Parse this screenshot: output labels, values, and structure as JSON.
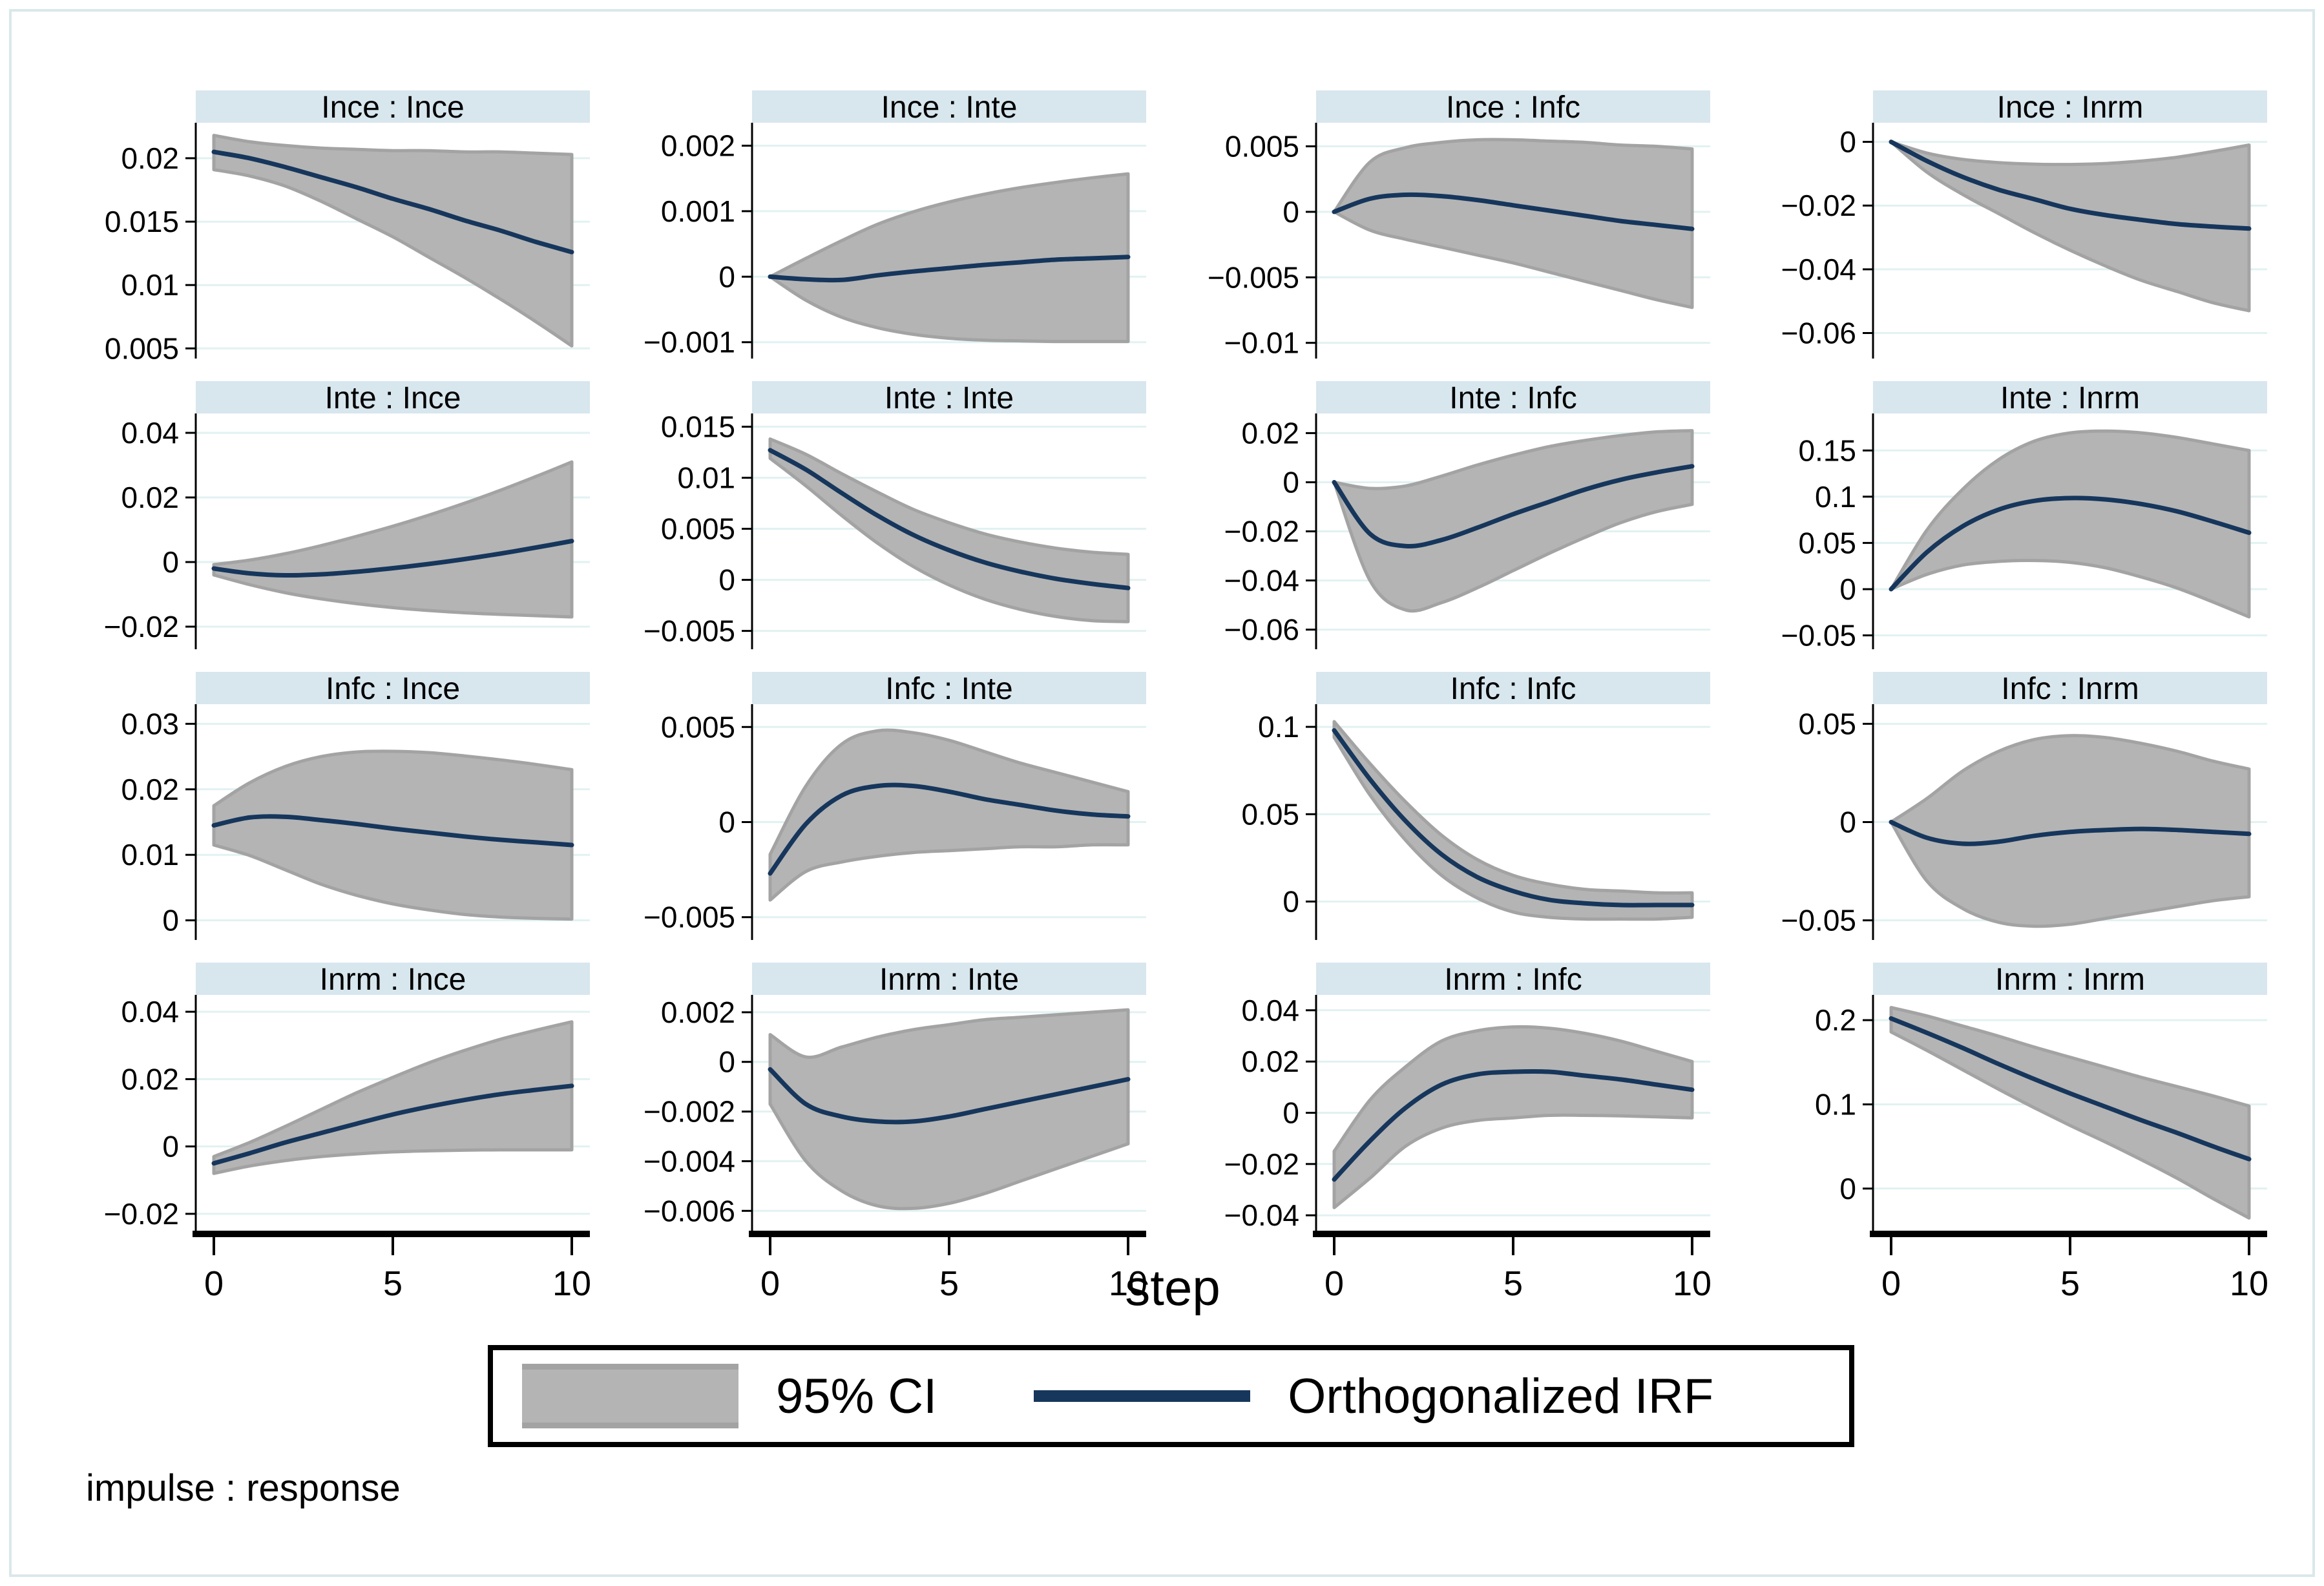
{
  "chart_data": {
    "type": "line",
    "x": [
      0,
      1,
      2,
      3,
      4,
      5,
      6,
      7,
      8,
      9,
      10
    ],
    "xticks": [
      {
        "v": 0,
        "label": "0"
      },
      {
        "v": 5,
        "label": "5"
      },
      {
        "v": 10,
        "label": "10"
      }
    ],
    "xlabel": "step",
    "footer": "impulse : response",
    "grid": true,
    "legend_position": "bottom-center",
    "legend": [
      {
        "swatch": "band",
        "label": "95% CI"
      },
      {
        "swatch": "line",
        "label": "Orthogonalized IRF"
      }
    ],
    "colors": {
      "band_fill": "#b4b4b4",
      "band_edge": "#a3a3a3",
      "irf_line": "#16365c",
      "title_bg": "#d8e6ee",
      "grid_line": "#e2f1f1",
      "frame": "#d9e8ea",
      "axis": "#000000"
    },
    "panels": [
      {
        "title": "Ince : Ince",
        "ylim": [
          0.0042,
          0.0228
        ],
        "yticks": [
          {
            "v": 0.005,
            "label": "0.005"
          },
          {
            "v": 0.01,
            "label": "0.01"
          },
          {
            "v": 0.015,
            "label": "0.015"
          },
          {
            "v": 0.02,
            "label": "0.02"
          }
        ],
        "irf": [
          0.0205,
          0.02,
          0.0193,
          0.0185,
          0.0177,
          0.0168,
          0.016,
          0.0151,
          0.0143,
          0.0134,
          0.0126
        ],
        "ci_upper": [
          0.0218,
          0.0213,
          0.021,
          0.0208,
          0.0207,
          0.0206,
          0.0206,
          0.0205,
          0.0205,
          0.0204,
          0.0203
        ],
        "ci_lower": [
          0.0191,
          0.0186,
          0.0178,
          0.0166,
          0.0152,
          0.0138,
          0.0122,
          0.0106,
          0.0089,
          0.0071,
          0.0052
        ]
      },
      {
        "title": "Ince : Inte",
        "ylim": [
          -0.00125,
          0.00235
        ],
        "yticks": [
          {
            "v": -0.001,
            "label": "−0.001"
          },
          {
            "v": 0,
            "label": "0"
          },
          {
            "v": 0.001,
            "label": "0.001"
          },
          {
            "v": 0.002,
            "label": "0.002"
          }
        ],
        "irf": [
          0,
          -4e-05,
          -5e-05,
          2e-05,
          8e-05,
          0.00013,
          0.00018,
          0.00022,
          0.00026,
          0.00028,
          0.0003
        ],
        "ci_upper": [
          0,
          0.00028,
          0.00055,
          0.0008,
          0.00099,
          0.00114,
          0.00126,
          0.00136,
          0.00144,
          0.00151,
          0.00157
        ],
        "ci_lower": [
          0,
          -0.00036,
          -0.00062,
          -0.00078,
          -0.00088,
          -0.00094,
          -0.00097,
          -0.00098,
          -0.00099,
          -0.00099,
          -0.00099
        ]
      },
      {
        "title": "Ince : Infc",
        "ylim": [
          -0.0112,
          0.0068
        ],
        "yticks": [
          {
            "v": -0.01,
            "label": "−0.01"
          },
          {
            "v": -0.005,
            "label": "−0.005"
          },
          {
            "v": 0,
            "label": "0"
          },
          {
            "v": 0.005,
            "label": "0.005"
          }
        ],
        "irf": [
          0,
          0.001,
          0.0013,
          0.0012,
          0.0009,
          0.0005,
          0.0001,
          -0.0003,
          -0.0007,
          -0.001,
          -0.0013
        ],
        "ci_upper": [
          0,
          0.0038,
          0.0049,
          0.0053,
          0.0055,
          0.0055,
          0.0054,
          0.0053,
          0.0051,
          0.005,
          0.0048
        ],
        "ci_lower": [
          0,
          -0.0014,
          -0.0021,
          -0.0027,
          -0.0033,
          -0.0039,
          -0.0046,
          -0.0053,
          -0.006,
          -0.0067,
          -0.0073
        ]
      },
      {
        "title": "Ince : Inrm",
        "ylim": [
          -0.068,
          0.006
        ],
        "yticks": [
          {
            "v": -0.06,
            "label": "−0.06"
          },
          {
            "v": -0.04,
            "label": "−0.04"
          },
          {
            "v": -0.02,
            "label": "−0.02"
          },
          {
            "v": 0,
            "label": "0"
          }
        ],
        "irf": [
          0,
          -0.006,
          -0.011,
          -0.015,
          -0.018,
          -0.021,
          -0.023,
          -0.0245,
          -0.0258,
          -0.0266,
          -0.0272
        ],
        "ci_upper": [
          0,
          -0.0035,
          -0.0055,
          -0.0065,
          -0.007,
          -0.0071,
          -0.0068,
          -0.006,
          -0.0048,
          -0.003,
          -0.001
        ],
        "ci_lower": [
          0,
          -0.0095,
          -0.0165,
          -0.0225,
          -0.0285,
          -0.034,
          -0.039,
          -0.0435,
          -0.047,
          -0.0505,
          -0.053
        ]
      },
      {
        "title": "Inte : Ince",
        "ylim": [
          -0.027,
          0.046
        ],
        "yticks": [
          {
            "v": -0.02,
            "label": "−0.02"
          },
          {
            "v": 0,
            "label": "0"
          },
          {
            "v": 0.02,
            "label": "0.02"
          },
          {
            "v": 0.04,
            "label": "0.04"
          }
        ],
        "irf": [
          -0.002,
          -0.0035,
          -0.0041,
          -0.0038,
          -0.003,
          -0.0019,
          -0.0006,
          0.0009,
          0.0026,
          0.0045,
          0.0065
        ],
        "ci_upper": [
          -0.0008,
          0.0006,
          0.0026,
          0.0051,
          0.008,
          0.0111,
          0.0145,
          0.0182,
          0.0222,
          0.0265,
          0.031
        ],
        "ci_lower": [
          -0.004,
          -0.007,
          -0.0095,
          -0.0114,
          -0.0129,
          -0.0141,
          -0.015,
          -0.0157,
          -0.0162,
          -0.0166,
          -0.017
        ]
      },
      {
        "title": "Inte : Inte",
        "ylim": [
          -0.0068,
          0.0163
        ],
        "yticks": [
          {
            "v": -0.005,
            "label": "−0.005"
          },
          {
            "v": 0,
            "label": "0"
          },
          {
            "v": 0.005,
            "label": "0.005"
          },
          {
            "v": 0.01,
            "label": "0.01"
          },
          {
            "v": 0.015,
            "label": "0.015"
          }
        ],
        "irf": [
          0.0127,
          0.0108,
          0.0085,
          0.0063,
          0.0044,
          0.0029,
          0.0017,
          0.0008,
          0.0001,
          -0.0004,
          -0.0008
        ],
        "ci_upper": [
          0.0138,
          0.0123,
          0.0104,
          0.0086,
          0.0069,
          0.0056,
          0.0045,
          0.0037,
          0.0031,
          0.0027,
          0.0025
        ],
        "ci_lower": [
          0.0119,
          0.0092,
          0.0063,
          0.0036,
          0.0013,
          -0.0005,
          -0.0019,
          -0.0029,
          -0.0036,
          -0.004,
          -0.0041
        ]
      },
      {
        "title": "Inte : Infc",
        "ylim": [
          -0.068,
          0.028
        ],
        "yticks": [
          {
            "v": -0.06,
            "label": "−0.06"
          },
          {
            "v": -0.04,
            "label": "−0.04"
          },
          {
            "v": -0.02,
            "label": "−0.02"
          },
          {
            "v": 0,
            "label": "0"
          },
          {
            "v": 0.02,
            "label": "0.02"
          }
        ],
        "irf": [
          0,
          -0.021,
          -0.026,
          -0.0235,
          -0.0185,
          -0.013,
          -0.008,
          -0.003,
          0.001,
          0.004,
          0.0065
        ],
        "ci_upper": [
          0,
          -0.0025,
          -0.0015,
          0.0025,
          0.007,
          0.011,
          0.0145,
          0.017,
          0.019,
          0.0205,
          0.021
        ],
        "ci_lower": [
          0,
          -0.04,
          -0.052,
          -0.049,
          -0.043,
          -0.036,
          -0.029,
          -0.0225,
          -0.0165,
          -0.012,
          -0.009
        ]
      },
      {
        "title": "Inte : Inrm",
        "ylim": [
          -0.065,
          0.19
        ],
        "yticks": [
          {
            "v": -0.05,
            "label": "−0.05"
          },
          {
            "v": 0,
            "label": "0"
          },
          {
            "v": 0.05,
            "label": "0.05"
          },
          {
            "v": 0.1,
            "label": "0.1"
          },
          {
            "v": 0.15,
            "label": "0.15"
          }
        ],
        "irf": [
          0,
          0.04,
          0.068,
          0.086,
          0.0955,
          0.0985,
          0.097,
          0.092,
          0.084,
          0.073,
          0.061
        ],
        "ci_upper": [
          0,
          0.064,
          0.108,
          0.14,
          0.16,
          0.169,
          0.171,
          0.169,
          0.164,
          0.157,
          0.15
        ],
        "ci_lower": [
          0,
          0.016,
          0.026,
          0.03,
          0.031,
          0.029,
          0.023,
          0.013,
          0.001,
          -0.014,
          -0.03
        ]
      },
      {
        "title": "Infc : Ince",
        "ylim": [
          -0.003,
          0.033
        ],
        "yticks": [
          {
            "v": 0,
            "label": "0"
          },
          {
            "v": 0.01,
            "label": "0.01"
          },
          {
            "v": 0.02,
            "label": "0.02"
          },
          {
            "v": 0.03,
            "label": "0.03"
          }
        ],
        "irf": [
          0.0145,
          0.0157,
          0.0158,
          0.0153,
          0.0147,
          0.014,
          0.0134,
          0.0128,
          0.0123,
          0.0119,
          0.0115
        ],
        "ci_upper": [
          0.0175,
          0.021,
          0.0235,
          0.025,
          0.0257,
          0.0258,
          0.0256,
          0.0251,
          0.0245,
          0.0238,
          0.023
        ],
        "ci_lower": [
          0.0115,
          0.0099,
          0.0077,
          0.0055,
          0.0038,
          0.0025,
          0.0016,
          0.0009,
          0.0005,
          0.0003,
          0.0002
        ]
      },
      {
        "title": "Infc : Inte",
        "ylim": [
          -0.0062,
          0.0062
        ],
        "yticks": [
          {
            "v": -0.005,
            "label": "−0.005"
          },
          {
            "v": 0,
            "label": "0"
          },
          {
            "v": 0.005,
            "label": "0.005"
          }
        ],
        "irf": [
          -0.0027,
          -0.0001,
          0.0014,
          0.0019,
          0.0019,
          0.0016,
          0.0012,
          0.0009,
          0.0006,
          0.0004,
          0.0003
        ],
        "ci_upper": [
          -0.0017,
          0.0019,
          0.0041,
          0.0048,
          0.0047,
          0.0043,
          0.0037,
          0.0031,
          0.0026,
          0.0021,
          0.0016
        ],
        "ci_lower": [
          -0.0041,
          -0.0026,
          -0.0021,
          -0.0018,
          -0.0016,
          -0.0015,
          -0.0014,
          -0.0013,
          -0.0013,
          -0.0012,
          -0.0012
        ]
      },
      {
        "title": "Infc : Infc",
        "ylim": [
          -0.022,
          0.113
        ],
        "yticks": [
          {
            "v": 0,
            "label": "0"
          },
          {
            "v": 0.05,
            "label": "0.05"
          },
          {
            "v": 0.1,
            "label": "0.1"
          }
        ],
        "irf": [
          0.098,
          0.07,
          0.046,
          0.027,
          0.014,
          0.006,
          0.001,
          -0.001,
          -0.002,
          -0.002,
          -0.002
        ],
        "ci_upper": [
          0.103,
          0.079,
          0.057,
          0.038,
          0.024,
          0.015,
          0.01,
          0.007,
          0.006,
          0.005,
          0.005
        ],
        "ci_lower": [
          0.094,
          0.061,
          0.035,
          0.015,
          0.002,
          -0.006,
          -0.009,
          -0.01,
          -0.01,
          -0.01,
          -0.009
        ]
      },
      {
        "title": "Infc : Inrm",
        "ylim": [
          -0.06,
          0.06
        ],
        "yticks": [
          {
            "v": -0.05,
            "label": "−0.05"
          },
          {
            "v": 0,
            "label": "0"
          },
          {
            "v": 0.05,
            "label": "0.05"
          }
        ],
        "irf": [
          0,
          -0.008,
          -0.011,
          -0.01,
          -0.007,
          -0.005,
          -0.004,
          -0.0035,
          -0.004,
          -0.005,
          -0.006
        ],
        "ci_upper": [
          0,
          0.012,
          0.026,
          0.036,
          0.042,
          0.044,
          0.043,
          0.04,
          0.036,
          0.031,
          0.027
        ],
        "ci_lower": [
          0,
          -0.03,
          -0.044,
          -0.051,
          -0.053,
          -0.052,
          -0.049,
          -0.046,
          -0.043,
          -0.04,
          -0.038
        ]
      },
      {
        "title": "Inrm : Ince",
        "ylim": [
          -0.025,
          0.045
        ],
        "yticks": [
          {
            "v": -0.02,
            "label": "−0.02"
          },
          {
            "v": 0,
            "label": "0"
          },
          {
            "v": 0.02,
            "label": "0.02"
          },
          {
            "v": 0.04,
            "label": "0.04"
          }
        ],
        "irf": [
          -0.005,
          -0.002,
          0.0012,
          0.004,
          0.0068,
          0.0095,
          0.0118,
          0.0138,
          0.0155,
          0.0168,
          0.018
        ],
        "ci_upper": [
          -0.003,
          0.0012,
          0.006,
          0.011,
          0.016,
          0.0205,
          0.0248,
          0.0285,
          0.0318,
          0.0345,
          0.037
        ],
        "ci_lower": [
          -0.008,
          -0.0058,
          -0.0042,
          -0.003,
          -0.0022,
          -0.0016,
          -0.0013,
          -0.0011,
          -0.001,
          -0.001,
          -0.001
        ]
      },
      {
        "title": "Inrm : Inte",
        "ylim": [
          -0.0068,
          0.0027
        ],
        "yticks": [
          {
            "v": -0.006,
            "label": "−0.006"
          },
          {
            "v": -0.004,
            "label": "−0.004"
          },
          {
            "v": -0.002,
            "label": "−0.002"
          },
          {
            "v": 0,
            "label": "0"
          },
          {
            "v": 0.002,
            "label": "0.002"
          }
        ],
        "irf": [
          -0.0003,
          -0.0017,
          -0.0022,
          -0.0024,
          -0.0024,
          -0.0022,
          -0.0019,
          -0.0016,
          -0.0013,
          -0.001,
          -0.0007
        ],
        "ci_upper": [
          0.0011,
          0.0002,
          0.0006,
          0.001,
          0.0013,
          0.0015,
          0.0017,
          0.0018,
          0.0019,
          0.002,
          0.0021
        ],
        "ci_lower": [
          -0.0017,
          -0.004,
          -0.0052,
          -0.0058,
          -0.0059,
          -0.0057,
          -0.0053,
          -0.0048,
          -0.0043,
          -0.0038,
          -0.0033
        ]
      },
      {
        "title": "Inrm : Infc",
        "ylim": [
          -0.046,
          0.046
        ],
        "yticks": [
          {
            "v": -0.04,
            "label": "−0.04"
          },
          {
            "v": -0.02,
            "label": "−0.02"
          },
          {
            "v": 0,
            "label": "0"
          },
          {
            "v": 0.02,
            "label": "0.02"
          },
          {
            "v": 0.04,
            "label": "0.04"
          }
        ],
        "irf": [
          -0.026,
          -0.011,
          0.002,
          0.011,
          0.015,
          0.016,
          0.016,
          0.0145,
          0.013,
          0.011,
          0.009
        ],
        "ci_upper": [
          -0.015,
          0.005,
          0.018,
          0.028,
          0.032,
          0.0335,
          0.033,
          0.031,
          0.028,
          0.024,
          0.02
        ],
        "ci_lower": [
          -0.037,
          -0.0255,
          -0.013,
          -0.006,
          -0.003,
          -0.002,
          -0.001,
          -0.001,
          -0.0012,
          -0.0016,
          -0.002
        ]
      },
      {
        "title": "Inrm : Inrm",
        "ylim": [
          -0.05,
          0.23
        ],
        "yticks": [
          {
            "v": 0,
            "label": "0"
          },
          {
            "v": 0.1,
            "label": "0.1"
          },
          {
            "v": 0.2,
            "label": "0.2"
          }
        ],
        "irf": [
          0.202,
          0.185,
          0.167,
          0.148,
          0.13,
          0.113,
          0.097,
          0.081,
          0.066,
          0.05,
          0.035
        ],
        "ci_upper": [
          0.215,
          0.205,
          0.193,
          0.181,
          0.168,
          0.156,
          0.144,
          0.132,
          0.121,
          0.11,
          0.098
        ],
        "ci_lower": [
          0.186,
          0.164,
          0.141,
          0.118,
          0.096,
          0.075,
          0.055,
          0.034,
          0.012,
          -0.012,
          -0.035
        ]
      }
    ]
  }
}
